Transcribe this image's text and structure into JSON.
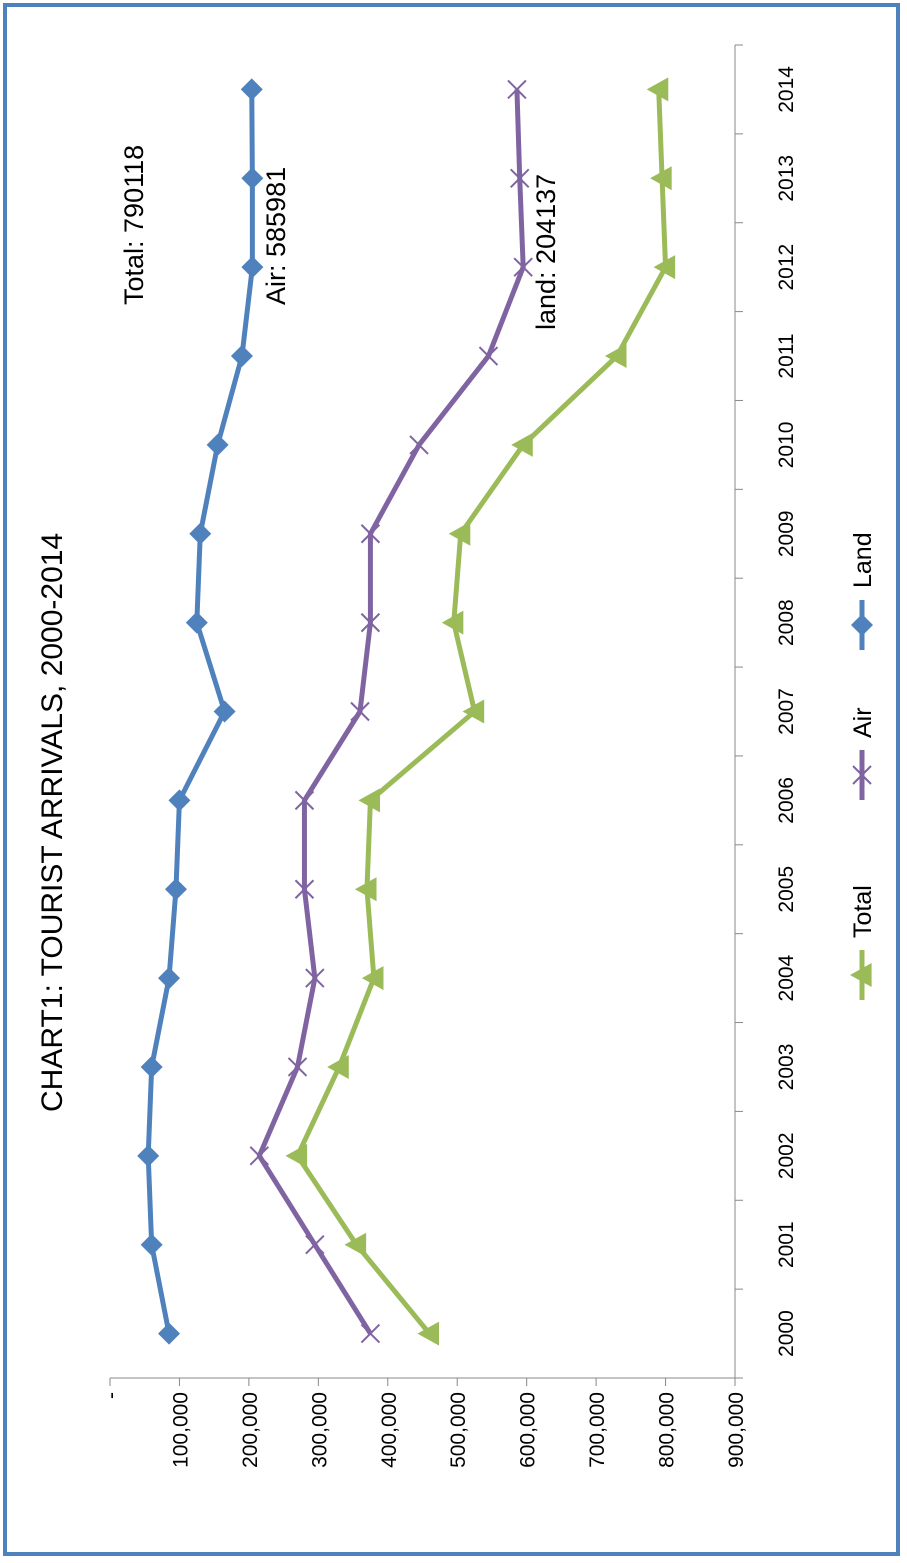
{
  "chart_data": {
    "type": "line",
    "title": "CHART1: TOURIST ARRIVALS, 2000-2014",
    "categories": [
      "2000",
      "2001",
      "2002",
      "2003",
      "2004",
      "2005",
      "2006",
      "2007",
      "2008",
      "2009",
      "2010",
      "2011",
      "2012",
      "2013",
      "2014"
    ],
    "y_ticks": [
      "-",
      "100,000",
      "200,000",
      "300,000",
      "400,000",
      "500,000",
      "600,000",
      "700,000",
      "800,000",
      "900,000"
    ],
    "ylim": [
      0,
      900000
    ],
    "grid": false,
    "orientation": "rotated 90° counter-clockwise",
    "legend_position": "bottom",
    "series": [
      {
        "name": "Total",
        "color": "#9bbb59",
        "marker": "triangle",
        "values": [
          460000,
          355000,
          270000,
          330000,
          380000,
          370000,
          375000,
          525000,
          495000,
          505000,
          595000,
          730000,
          800000,
          795000,
          790118
        ]
      },
      {
        "name": "Air",
        "color": "#8064a2",
        "marker": "x",
        "values": [
          375000,
          295000,
          215000,
          270000,
          295000,
          280000,
          280000,
          360000,
          375000,
          375000,
          445000,
          545000,
          595000,
          590000,
          585981
        ]
      },
      {
        "name": "Land",
        "color": "#4f81bd",
        "marker": "diamond",
        "values": [
          85000,
          60000,
          55000,
          60000,
          85000,
          95000,
          100000,
          165000,
          125000,
          130000,
          155000,
          190000,
          205000,
          205000,
          204137
        ]
      }
    ],
    "annotations": [
      {
        "text": "Total: 790118",
        "series": "Total"
      },
      {
        "text": "Air: 585981",
        "series": "Air"
      },
      {
        "text": "land: 204137",
        "series": "Land"
      }
    ]
  }
}
